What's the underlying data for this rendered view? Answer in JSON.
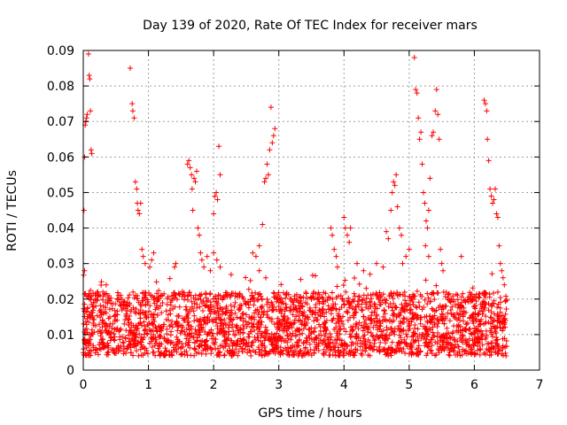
{
  "chart_data": {
    "type": "scatter",
    "title": "Day 139 of 2020, Rate Of TEC Index for receiver mars",
    "xlabel": "GPS time / hours",
    "ylabel": "ROTI / TECUs",
    "xlim": [
      0,
      7
    ],
    "ylim": [
      0,
      0.09
    ],
    "x_ticks": [
      "0",
      "1",
      "2",
      "3",
      "4",
      "5",
      "6",
      "7"
    ],
    "y_ticks": [
      "0",
      "0.01",
      "0.02",
      "0.03",
      "0.04",
      "0.05",
      "0.06",
      "0.07",
      "0.08",
      "0.09"
    ],
    "grid": true,
    "marker": "+",
    "color": "#ff0000",
    "series": [
      {
        "name": "ROTI",
        "points": [
          [
            0.01,
            0.045
          ],
          [
            0.02,
            0.06
          ],
          [
            0.03,
            0.069
          ],
          [
            0.04,
            0.07
          ],
          [
            0.05,
            0.071
          ],
          [
            0.06,
            0.072
          ],
          [
            0.08,
            0.089
          ],
          [
            0.09,
            0.083
          ],
          [
            0.1,
            0.082
          ],
          [
            0.11,
            0.073
          ],
          [
            0.12,
            0.062
          ],
          [
            0.13,
            0.061
          ],
          [
            0.02,
            0.028
          ],
          [
            0.72,
            0.085
          ],
          [
            0.75,
            0.075
          ],
          [
            0.76,
            0.073
          ],
          [
            0.78,
            0.071
          ],
          [
            0.8,
            0.053
          ],
          [
            0.82,
            0.051
          ],
          [
            0.83,
            0.047
          ],
          [
            0.84,
            0.045
          ],
          [
            0.86,
            0.044
          ],
          [
            0.88,
            0.047
          ],
          [
            0.9,
            0.034
          ],
          [
            0.92,
            0.032
          ],
          [
            0.95,
            0.03
          ],
          [
            1.02,
            0.029
          ],
          [
            1.05,
            0.031
          ],
          [
            1.08,
            0.033
          ],
          [
            1.4,
            0.029
          ],
          [
            1.42,
            0.03
          ],
          [
            1.6,
            0.058
          ],
          [
            1.62,
            0.059
          ],
          [
            1.64,
            0.057
          ],
          [
            1.66,
            0.055
          ],
          [
            1.67,
            0.051
          ],
          [
            1.68,
            0.045
          ],
          [
            1.7,
            0.054
          ],
          [
            1.72,
            0.053
          ],
          [
            1.74,
            0.056
          ],
          [
            1.76,
            0.04
          ],
          [
            1.78,
            0.038
          ],
          [
            1.8,
            0.033
          ],
          [
            1.82,
            0.031
          ],
          [
            1.85,
            0.029
          ],
          [
            1.9,
            0.032
          ],
          [
            1.95,
            0.028
          ],
          [
            2.0,
            0.044
          ],
          [
            2.02,
            0.049
          ],
          [
            2.04,
            0.05
          ],
          [
            2.06,
            0.048
          ],
          [
            2.08,
            0.063
          ],
          [
            2.1,
            0.055
          ],
          [
            2.0,
            0.033
          ],
          [
            2.05,
            0.031
          ],
          [
            2.1,
            0.029
          ],
          [
            2.6,
            0.033
          ],
          [
            2.65,
            0.032
          ],
          [
            2.7,
            0.035
          ],
          [
            2.75,
            0.041
          ],
          [
            2.78,
            0.053
          ],
          [
            2.8,
            0.054
          ],
          [
            2.82,
            0.058
          ],
          [
            2.84,
            0.055
          ],
          [
            2.86,
            0.062
          ],
          [
            2.88,
            0.074
          ],
          [
            2.9,
            0.064
          ],
          [
            2.92,
            0.066
          ],
          [
            2.94,
            0.068
          ],
          [
            2.7,
            0.028
          ],
          [
            2.8,
            0.026
          ],
          [
            3.8,
            0.04
          ],
          [
            3.82,
            0.038
          ],
          [
            3.85,
            0.034
          ],
          [
            3.88,
            0.032
          ],
          [
            3.9,
            0.029
          ],
          [
            4.0,
            0.043
          ],
          [
            4.02,
            0.04
          ],
          [
            4.05,
            0.038
          ],
          [
            4.08,
            0.036
          ],
          [
            4.1,
            0.04
          ],
          [
            4.2,
            0.03
          ],
          [
            4.3,
            0.028
          ],
          [
            4.4,
            0.027
          ],
          [
            4.5,
            0.03
          ],
          [
            4.6,
            0.029
          ],
          [
            4.65,
            0.039
          ],
          [
            4.68,
            0.037
          ],
          [
            4.72,
            0.045
          ],
          [
            4.74,
            0.05
          ],
          [
            4.76,
            0.053
          ],
          [
            4.78,
            0.052
          ],
          [
            4.8,
            0.055
          ],
          [
            4.82,
            0.046
          ],
          [
            4.85,
            0.04
          ],
          [
            4.88,
            0.038
          ],
          [
            4.9,
            0.03
          ],
          [
            4.95,
            0.032
          ],
          [
            5.0,
            0.034
          ],
          [
            5.08,
            0.088
          ],
          [
            5.1,
            0.079
          ],
          [
            5.12,
            0.078
          ],
          [
            5.14,
            0.071
          ],
          [
            5.16,
            0.065
          ],
          [
            5.18,
            0.067
          ],
          [
            5.2,
            0.058
          ],
          [
            5.22,
            0.05
          ],
          [
            5.24,
            0.047
          ],
          [
            5.26,
            0.042
          ],
          [
            5.28,
            0.04
          ],
          [
            5.3,
            0.045
          ],
          [
            5.32,
            0.054
          ],
          [
            5.35,
            0.066
          ],
          [
            5.37,
            0.067
          ],
          [
            5.4,
            0.073
          ],
          [
            5.42,
            0.079
          ],
          [
            5.44,
            0.072
          ],
          [
            5.46,
            0.065
          ],
          [
            5.48,
            0.034
          ],
          [
            5.5,
            0.03
          ],
          [
            5.52,
            0.028
          ],
          [
            5.25,
            0.035
          ],
          [
            5.3,
            0.032
          ],
          [
            5.8,
            0.032
          ],
          [
            6.15,
            0.076
          ],
          [
            6.17,
            0.075
          ],
          [
            6.19,
            0.073
          ],
          [
            6.2,
            0.065
          ],
          [
            6.22,
            0.059
          ],
          [
            6.24,
            0.051
          ],
          [
            6.26,
            0.049
          ],
          [
            6.28,
            0.047
          ],
          [
            6.3,
            0.048
          ],
          [
            6.32,
            0.051
          ],
          [
            6.34,
            0.044
          ],
          [
            6.36,
            0.043
          ],
          [
            6.38,
            0.035
          ],
          [
            6.4,
            0.03
          ],
          [
            6.42,
            0.028
          ],
          [
            6.44,
            0.026
          ],
          [
            6.46,
            0.024
          ]
        ],
        "dense_band": {
          "x_start": 0.0,
          "x_end": 6.5,
          "baseline_min": 0.004,
          "baseline_max": 0.022,
          "count": 2600
        }
      }
    ]
  }
}
